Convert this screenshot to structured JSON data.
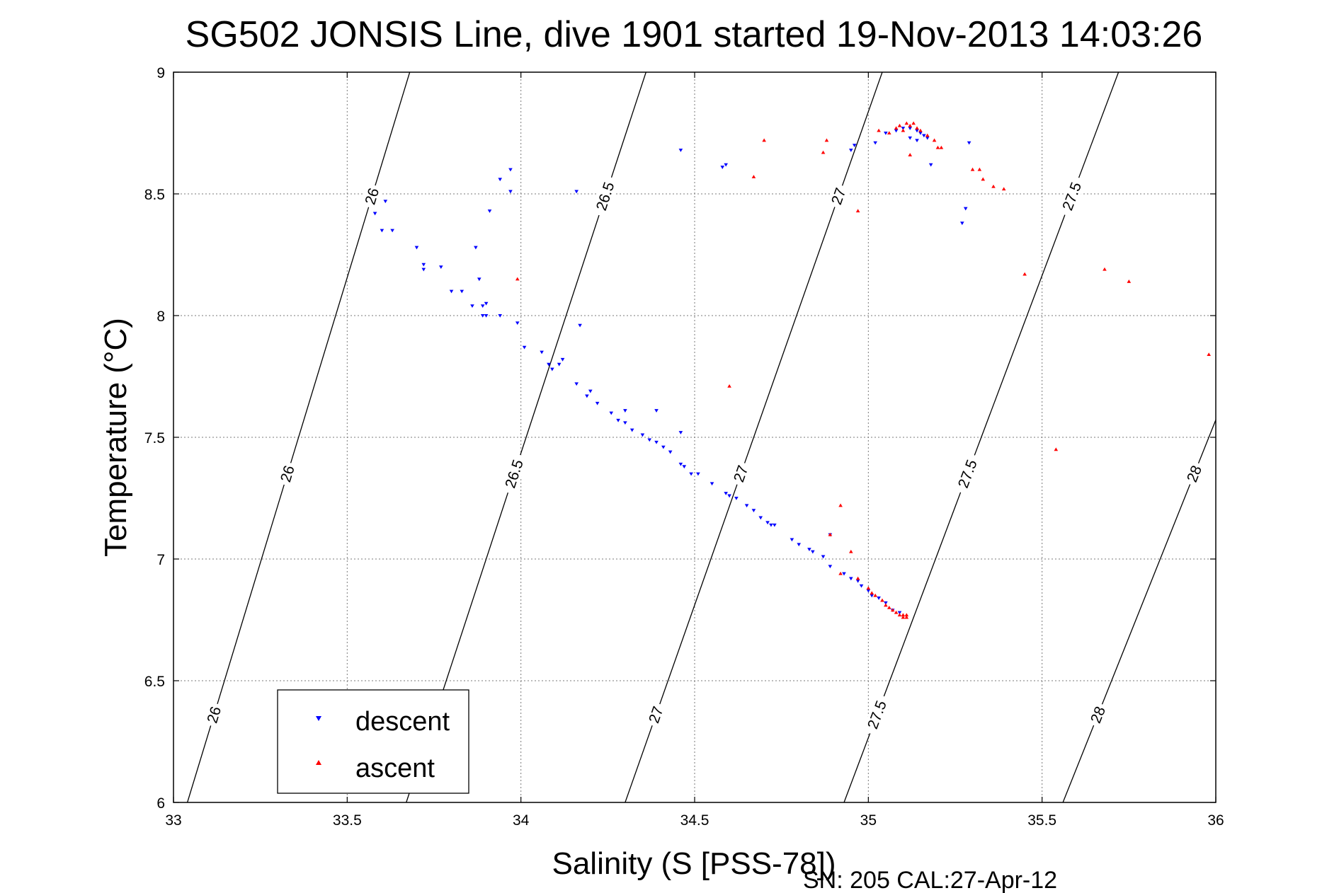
{
  "chart_data": {
    "type": "scatter",
    "title": "SG502 JONSIS Line, dive 1901 started 19-Nov-2013 14:03:26",
    "xlabel": "Salinity (S [PSS-78])",
    "ylabel": "Temperature (°C)",
    "xlim": [
      33,
      36
    ],
    "ylim": [
      6,
      9
    ],
    "xticks": [
      "33",
      "33.5",
      "34",
      "34.5",
      "35",
      "35.5",
      "36"
    ],
    "yticks": [
      "6",
      "6.5",
      "7",
      "7.5",
      "8",
      "8.5",
      "9"
    ],
    "grid": true,
    "legend_position": "bottom-left",
    "footer": "SN: 205  CAL:27-Apr-12",
    "density_contours": [
      {
        "label": "26",
        "s_at_t6": 33.04,
        "s_at_t9": 33.68
      },
      {
        "label": "26.5",
        "s_at_t6": 33.67,
        "s_at_t9": 34.36
      },
      {
        "label": "27",
        "s_at_t6": 34.3,
        "s_at_t9": 35.04
      },
      {
        "label": "27.5",
        "s_at_t6": 34.93,
        "s_at_t9": 35.72
      },
      {
        "label": "28",
        "s_at_t6": 35.56,
        "s_at_t9": 36.4
      }
    ],
    "series": [
      {
        "name": "descent",
        "color": "#0000ff",
        "marker": "triangle-down",
        "points": [
          [
            33.58,
            8.42
          ],
          [
            33.61,
            8.47
          ],
          [
            33.6,
            8.35
          ],
          [
            33.63,
            8.35
          ],
          [
            33.7,
            8.28
          ],
          [
            33.72,
            8.21
          ],
          [
            33.72,
            8.19
          ],
          [
            33.77,
            8.2
          ],
          [
            33.8,
            8.1
          ],
          [
            33.83,
            8.1
          ],
          [
            33.87,
            8.28
          ],
          [
            33.88,
            8.15
          ],
          [
            33.86,
            8.04
          ],
          [
            33.89,
            8.04
          ],
          [
            33.9,
            8.05
          ],
          [
            33.89,
            8.0
          ],
          [
            33.9,
            8.0
          ],
          [
            33.94,
            8.0
          ],
          [
            33.91,
            8.43
          ],
          [
            33.94,
            8.56
          ],
          [
            33.97,
            8.6
          ],
          [
            33.97,
            8.51
          ],
          [
            33.99,
            7.97
          ],
          [
            34.01,
            7.87
          ],
          [
            34.06,
            7.85
          ],
          [
            34.08,
            7.8
          ],
          [
            34.09,
            7.78
          ],
          [
            34.11,
            7.8
          ],
          [
            34.12,
            7.82
          ],
          [
            34.16,
            8.51
          ],
          [
            34.17,
            7.96
          ],
          [
            34.16,
            7.72
          ],
          [
            34.19,
            7.67
          ],
          [
            34.2,
            7.69
          ],
          [
            34.22,
            7.64
          ],
          [
            34.26,
            7.6
          ],
          [
            34.28,
            7.57
          ],
          [
            34.3,
            7.56
          ],
          [
            34.3,
            7.61
          ],
          [
            34.32,
            7.53
          ],
          [
            34.35,
            7.51
          ],
          [
            34.37,
            7.49
          ],
          [
            34.39,
            7.48
          ],
          [
            34.39,
            7.61
          ],
          [
            34.41,
            7.46
          ],
          [
            34.43,
            7.44
          ],
          [
            34.46,
            7.39
          ],
          [
            34.47,
            7.38
          ],
          [
            34.46,
            7.52
          ],
          [
            34.49,
            7.35
          ],
          [
            34.51,
            7.35
          ],
          [
            34.55,
            7.31
          ],
          [
            34.59,
            7.27
          ],
          [
            34.6,
            7.26
          ],
          [
            34.62,
            7.25
          ],
          [
            34.65,
            7.22
          ],
          [
            34.67,
            7.2
          ],
          [
            34.69,
            7.17
          ],
          [
            34.71,
            7.15
          ],
          [
            34.72,
            7.14
          ],
          [
            34.73,
            7.14
          ],
          [
            34.78,
            7.08
          ],
          [
            34.8,
            7.06
          ],
          [
            34.83,
            7.04
          ],
          [
            34.84,
            7.03
          ],
          [
            34.87,
            7.01
          ],
          [
            34.89,
            6.97
          ],
          [
            34.89,
            7.1
          ],
          [
            34.93,
            6.94
          ],
          [
            34.95,
            6.92
          ],
          [
            34.97,
            6.91
          ],
          [
            34.98,
            6.89
          ],
          [
            35.0,
            6.87
          ],
          [
            35.01,
            6.85
          ],
          [
            35.03,
            6.84
          ],
          [
            35.05,
            6.82
          ],
          [
            35.07,
            6.79
          ],
          [
            35.09,
            6.78
          ],
          [
            34.46,
            8.68
          ],
          [
            34.58,
            8.61
          ],
          [
            34.59,
            8.62
          ],
          [
            34.95,
            8.68
          ],
          [
            34.96,
            8.7
          ],
          [
            35.02,
            8.71
          ],
          [
            35.05,
            8.75
          ],
          [
            35.08,
            8.76
          ],
          [
            35.1,
            8.77
          ],
          [
            35.12,
            8.77
          ],
          [
            35.14,
            8.76
          ],
          [
            35.15,
            8.75
          ],
          [
            35.16,
            8.74
          ],
          [
            35.17,
            8.73
          ],
          [
            35.12,
            8.73
          ],
          [
            35.14,
            8.72
          ],
          [
            35.18,
            8.62
          ],
          [
            35.27,
            8.38
          ],
          [
            35.28,
            8.44
          ],
          [
            35.29,
            8.71
          ]
        ]
      },
      {
        "name": "ascent",
        "color": "#ff0000",
        "marker": "triangle-up",
        "points": [
          [
            33.99,
            8.15
          ],
          [
            34.6,
            7.71
          ],
          [
            34.7,
            8.72
          ],
          [
            34.67,
            8.57
          ],
          [
            34.87,
            8.67
          ],
          [
            34.88,
            8.72
          ],
          [
            34.97,
            8.43
          ],
          [
            35.03,
            8.76
          ],
          [
            35.06,
            8.75
          ],
          [
            35.08,
            8.77
          ],
          [
            35.09,
            8.78
          ],
          [
            35.1,
            8.76
          ],
          [
            35.11,
            8.79
          ],
          [
            35.12,
            8.78
          ],
          [
            35.13,
            8.79
          ],
          [
            35.14,
            8.77
          ],
          [
            35.15,
            8.76
          ],
          [
            35.17,
            8.74
          ],
          [
            35.19,
            8.72
          ],
          [
            35.2,
            8.69
          ],
          [
            35.21,
            8.69
          ],
          [
            35.12,
            8.66
          ],
          [
            35.3,
            8.6
          ],
          [
            35.32,
            8.6
          ],
          [
            35.33,
            8.56
          ],
          [
            35.36,
            8.53
          ],
          [
            35.39,
            8.52
          ],
          [
            35.45,
            8.17
          ],
          [
            35.54,
            7.45
          ],
          [
            35.68,
            8.19
          ],
          [
            35.75,
            8.14
          ],
          [
            35.98,
            7.84
          ],
          [
            34.92,
            7.22
          ],
          [
            34.89,
            7.1
          ],
          [
            34.95,
            7.03
          ],
          [
            34.92,
            6.94
          ],
          [
            34.97,
            6.92
          ],
          [
            35.0,
            6.88
          ],
          [
            35.01,
            6.86
          ],
          [
            35.02,
            6.85
          ],
          [
            35.04,
            6.83
          ],
          [
            35.05,
            6.81
          ],
          [
            35.06,
            6.8
          ],
          [
            35.07,
            6.79
          ],
          [
            35.08,
            6.78
          ],
          [
            35.09,
            6.77
          ],
          [
            35.1,
            6.77
          ],
          [
            35.11,
            6.76
          ],
          [
            35.1,
            6.76
          ],
          [
            35.11,
            6.77
          ]
        ]
      }
    ]
  }
}
